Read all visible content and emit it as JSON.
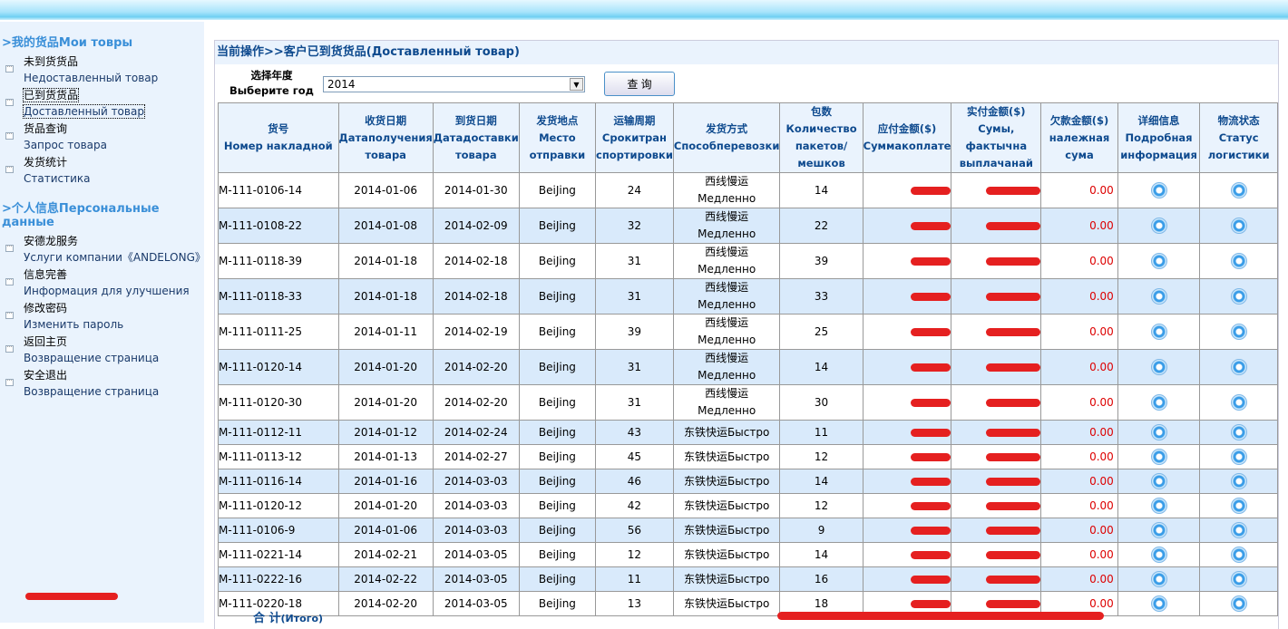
{
  "sidebar": {
    "section1": ">我的货品Мои товры",
    "items1": [
      {
        "zh": "未到货货品",
        "ru": "Недоставленный товар"
      },
      {
        "zh": "已到货货品",
        "ru": "Доставленный товар"
      },
      {
        "zh": "货品查询",
        "ru": "Запрос товара"
      },
      {
        "zh": "发货统计",
        "ru": "Статистика"
      }
    ],
    "section2": ">个人信息Персональные данные",
    "items2": [
      {
        "zh": "安德龙服务",
        "ru": "Услуги компании《ANDELONG》"
      },
      {
        "zh": "信息完善",
        "ru": "Информация для улучшения"
      },
      {
        "zh": "修改密码",
        "ru": "Изменить пароль"
      },
      {
        "zh": "返回主页",
        "ru": "Возвращение страница"
      },
      {
        "zh": "安全退出",
        "ru": "Возвращение страница"
      }
    ]
  },
  "main": {
    "title": "当前操作>>客户已到货货品(Доставленный товар)",
    "year_label_zh": "选择年度",
    "year_label_ru": "Выберите год",
    "year_value": "2014",
    "query_button": "查 询",
    "total_zh": "合 计",
    "total_ru": "(Итого)",
    "colors": {
      "header_text": "#0e4a8e",
      "alt_row": "#d9eafb",
      "owed": "#dd0000"
    },
    "columns": [
      {
        "zh": "货号",
        "ru": "Номер накладной"
      },
      {
        "zh": "收货日期",
        "ru": "Датаполучения товара"
      },
      {
        "zh": "到货日期",
        "ru": "Датадоставки товара"
      },
      {
        "zh": "发货地点",
        "ru": "Место отправки"
      },
      {
        "zh": "运输周期",
        "ru": "Срокитран спортировки"
      },
      {
        "zh": "发货方式",
        "ru": "Способперевозки"
      },
      {
        "zh": "包数",
        "ru": "Количество пакетов/мешков"
      },
      {
        "zh": "应付金额($)",
        "ru": "Суммакоплате"
      },
      {
        "zh": "实付金额($)",
        "ru": "Сумы, фактычна выплачанай"
      },
      {
        "zh": "欠款金额($)",
        "ru": "належная сума"
      },
      {
        "zh": "详细信息",
        "ru": "Подробная информация"
      },
      {
        "zh": "物流状态",
        "ru": "Статус логистики"
      }
    ],
    "rows": [
      [
        "M-111-0106-14",
        "2014-01-06",
        "2014-01-30",
        "BeiJing",
        "24",
        "西线慢运|Медленно",
        "14",
        "0.00"
      ],
      [
        "M-111-0108-22",
        "2014-01-08",
        "2014-02-09",
        "BeiJing",
        "32",
        "西线慢运|Медленно",
        "22",
        "0.00"
      ],
      [
        "M-111-0118-39",
        "2014-01-18",
        "2014-02-18",
        "BeiJing",
        "31",
        "西线慢运|Медленно",
        "39",
        "0.00"
      ],
      [
        "M-111-0118-33",
        "2014-01-18",
        "2014-02-18",
        "BeiJing",
        "31",
        "西线慢运|Медленно",
        "33",
        "0.00"
      ],
      [
        "M-111-0111-25",
        "2014-01-11",
        "2014-02-19",
        "BeiJing",
        "39",
        "西线慢运|Медленно",
        "25",
        "0.00"
      ],
      [
        "M-111-0120-14",
        "2014-01-20",
        "2014-02-20",
        "BeiJing",
        "31",
        "西线慢运|Медленно",
        "14",
        "0.00"
      ],
      [
        "M-111-0120-30",
        "2014-01-20",
        "2014-02-20",
        "BeiJing",
        "31",
        "西线慢运|Медленно",
        "30",
        "0.00"
      ],
      [
        "M-111-0112-11",
        "2014-01-12",
        "2014-02-24",
        "BeiJing",
        "43",
        "东铁快运Быстро",
        "11",
        "0.00"
      ],
      [
        "M-111-0113-12",
        "2014-01-13",
        "2014-02-27",
        "BeiJing",
        "45",
        "东铁快运Быстро",
        "12",
        "0.00"
      ],
      [
        "M-111-0116-14",
        "2014-01-16",
        "2014-03-03",
        "BeiJing",
        "46",
        "东铁快运Быстро",
        "14",
        "0.00"
      ],
      [
        "M-111-0120-12",
        "2014-01-20",
        "2014-03-03",
        "BeiJing",
        "42",
        "东铁快运Быстро",
        "12",
        "0.00"
      ],
      [
        "M-111-0106-9",
        "2014-01-06",
        "2014-03-03",
        "BeiJing",
        "56",
        "东铁快运Быстро",
        "9",
        "0.00"
      ],
      [
        "M-111-0221-14",
        "2014-02-21",
        "2014-03-05",
        "BeiJing",
        "12",
        "东铁快运Быстро",
        "14",
        "0.00"
      ],
      [
        "M-111-0222-16",
        "2014-02-22",
        "2014-03-05",
        "BeiJing",
        "11",
        "东铁快运Быстро",
        "16",
        "0.00"
      ],
      [
        "M-111-0220-18",
        "2014-02-20",
        "2014-03-05",
        "BeiJing",
        "13",
        "东铁快运Быстро",
        "18",
        "0.00"
      ]
    ]
  }
}
